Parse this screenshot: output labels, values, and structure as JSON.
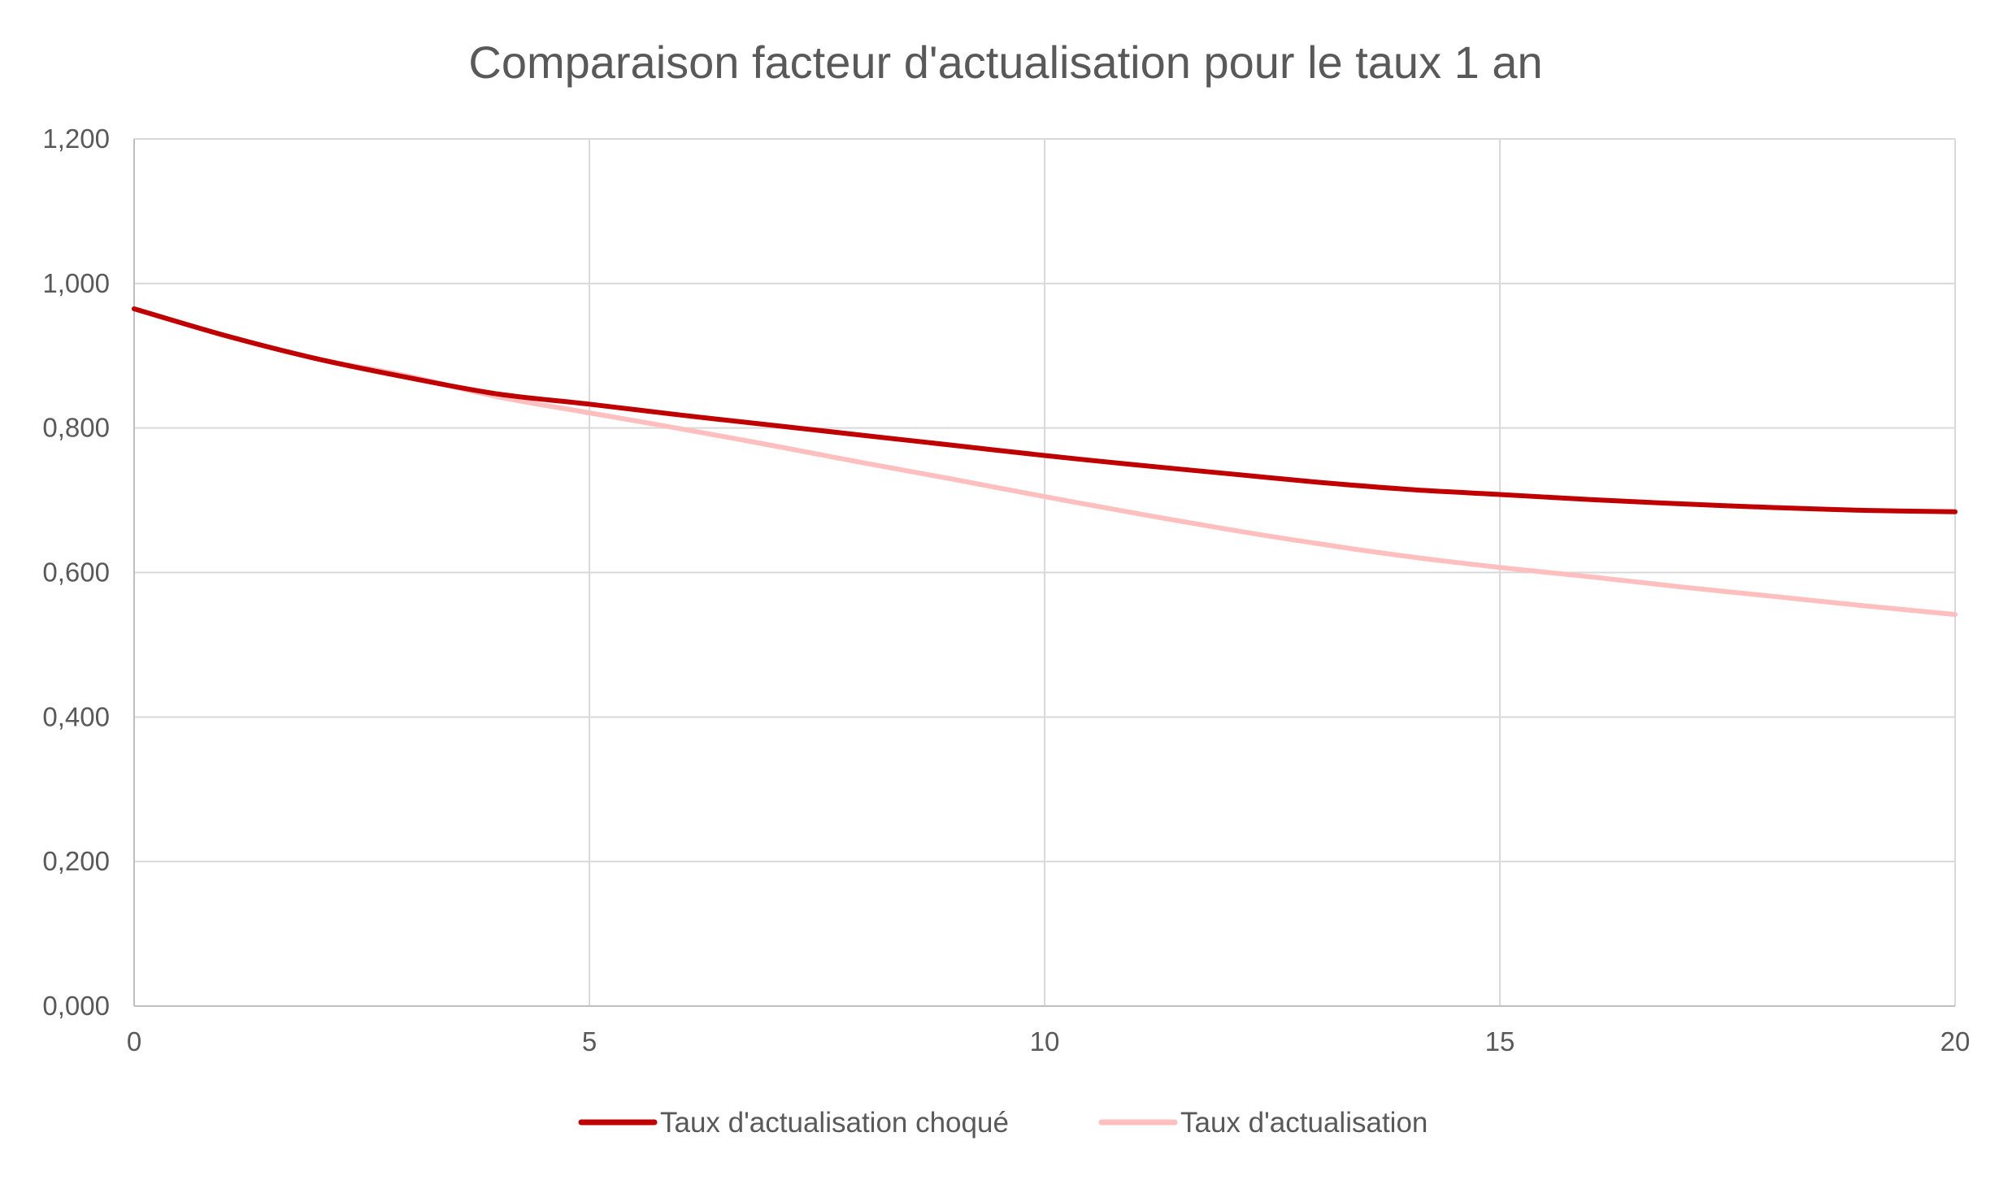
{
  "chart_data": {
    "type": "line",
    "title": "Comparaison facteur d'actualisation pour le taux 1 an",
    "xlabel": "",
    "ylabel": "",
    "x": [
      0,
      1,
      2,
      3,
      4,
      5,
      6,
      7,
      8,
      9,
      10,
      11,
      12,
      13,
      14,
      15,
      16,
      17,
      18,
      19,
      20
    ],
    "xlim": [
      0,
      20
    ],
    "ylim": [
      0,
      1.2
    ],
    "x_ticks": [
      "0",
      "5",
      "10",
      "15",
      "20"
    ],
    "x_tick_values": [
      0,
      5,
      10,
      15,
      20
    ],
    "y_ticks": [
      "0,000",
      "0,200",
      "0,400",
      "0,600",
      "0,800",
      "1,000",
      "1,200"
    ],
    "y_tick_values": [
      0,
      0.2,
      0.4,
      0.6,
      0.8,
      1.0,
      1.2
    ],
    "grid": true,
    "legend_position": "bottom",
    "series": [
      {
        "name": "Taux d'actualisation choqué",
        "color": "#c00000",
        "values": [
          0.965,
          0.928,
          0.896,
          0.87,
          0.847,
          0.833,
          0.818,
          0.804,
          0.79,
          0.776,
          0.762,
          0.749,
          0.737,
          0.725,
          0.715,
          0.708,
          0.701,
          0.695,
          0.69,
          0.686,
          0.684
        ]
      },
      {
        "name": "Taux d'actualisation",
        "color": "#ffbfbf",
        "values": [
          0.965,
          0.928,
          0.896,
          0.872,
          0.843,
          0.821,
          0.799,
          0.776,
          0.752,
          0.729,
          0.705,
          0.682,
          0.66,
          0.64,
          0.622,
          0.607,
          0.594,
          0.58,
          0.567,
          0.554,
          0.542
        ]
      }
    ]
  }
}
